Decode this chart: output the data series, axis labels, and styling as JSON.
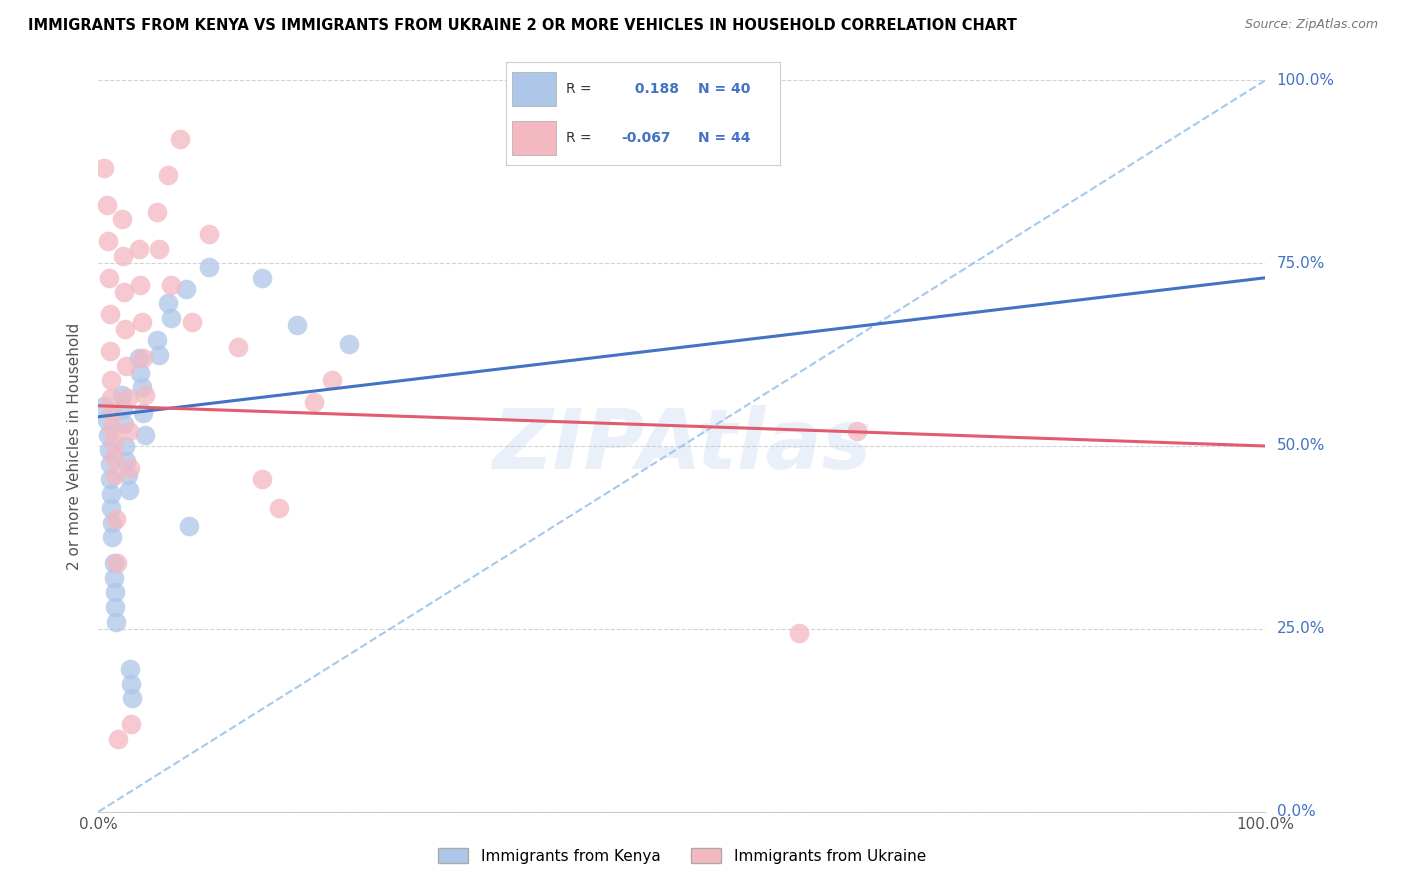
{
  "title": "IMMIGRANTS FROM KENYA VS IMMIGRANTS FROM UKRAINE 2 OR MORE VEHICLES IN HOUSEHOLD CORRELATION CHART",
  "source": "Source: ZipAtlas.com",
  "ylabel": "2 or more Vehicles in Household",
  "legend_kenya": "Immigrants from Kenya",
  "legend_ukraine": "Immigrants from Ukraine",
  "r_kenya": 0.188,
  "n_kenya": 40,
  "r_ukraine": -0.067,
  "n_ukraine": 44,
  "xlim": [
    0,
    1.0
  ],
  "ylim": [
    0,
    1.0
  ],
  "ytick_vals": [
    0.0,
    0.25,
    0.5,
    0.75,
    1.0
  ],
  "ytick_labels": [
    "0.0%",
    "25.0%",
    "50.0%",
    "75.0%",
    "100.0%"
  ],
  "grid_color": "#c8c8c8",
  "kenya_color": "#aec6e8",
  "ukraine_color": "#f4b8c1",
  "kenya_line_color": "#4472c4",
  "ukraine_line_color": "#e05c6e",
  "ref_line_color": "#7fb3e8",
  "kenya_scatter": [
    [
      0.005,
      0.555
    ],
    [
      0.007,
      0.535
    ],
    [
      0.008,
      0.515
    ],
    [
      0.009,
      0.495
    ],
    [
      0.01,
      0.475
    ],
    [
      0.01,
      0.455
    ],
    [
      0.011,
      0.435
    ],
    [
      0.011,
      0.415
    ],
    [
      0.012,
      0.395
    ],
    [
      0.012,
      0.375
    ],
    [
      0.013,
      0.34
    ],
    [
      0.013,
      0.32
    ],
    [
      0.014,
      0.3
    ],
    [
      0.014,
      0.28
    ],
    [
      0.015,
      0.26
    ],
    [
      0.02,
      0.57
    ],
    [
      0.021,
      0.55
    ],
    [
      0.022,
      0.53
    ],
    [
      0.023,
      0.5
    ],
    [
      0.024,
      0.48
    ],
    [
      0.025,
      0.46
    ],
    [
      0.026,
      0.44
    ],
    [
      0.027,
      0.195
    ],
    [
      0.028,
      0.175
    ],
    [
      0.029,
      0.155
    ],
    [
      0.035,
      0.62
    ],
    [
      0.036,
      0.6
    ],
    [
      0.037,
      0.58
    ],
    [
      0.038,
      0.545
    ],
    [
      0.04,
      0.515
    ],
    [
      0.05,
      0.645
    ],
    [
      0.052,
      0.625
    ],
    [
      0.06,
      0.695
    ],
    [
      0.062,
      0.675
    ],
    [
      0.075,
      0.715
    ],
    [
      0.078,
      0.39
    ],
    [
      0.095,
      0.745
    ],
    [
      0.14,
      0.73
    ],
    [
      0.17,
      0.665
    ],
    [
      0.215,
      0.64
    ]
  ],
  "ukraine_scatter": [
    [
      0.005,
      0.88
    ],
    [
      0.007,
      0.83
    ],
    [
      0.008,
      0.78
    ],
    [
      0.009,
      0.73
    ],
    [
      0.01,
      0.68
    ],
    [
      0.01,
      0.63
    ],
    [
      0.011,
      0.59
    ],
    [
      0.011,
      0.565
    ],
    [
      0.012,
      0.545
    ],
    [
      0.012,
      0.525
    ],
    [
      0.013,
      0.505
    ],
    [
      0.013,
      0.485
    ],
    [
      0.014,
      0.46
    ],
    [
      0.015,
      0.4
    ],
    [
      0.016,
      0.34
    ],
    [
      0.017,
      0.1
    ],
    [
      0.02,
      0.81
    ],
    [
      0.021,
      0.76
    ],
    [
      0.022,
      0.71
    ],
    [
      0.023,
      0.66
    ],
    [
      0.024,
      0.61
    ],
    [
      0.025,
      0.565
    ],
    [
      0.026,
      0.52
    ],
    [
      0.027,
      0.47
    ],
    [
      0.028,
      0.12
    ],
    [
      0.035,
      0.77
    ],
    [
      0.036,
      0.72
    ],
    [
      0.037,
      0.67
    ],
    [
      0.038,
      0.62
    ],
    [
      0.04,
      0.57
    ],
    [
      0.05,
      0.82
    ],
    [
      0.052,
      0.77
    ],
    [
      0.06,
      0.87
    ],
    [
      0.062,
      0.72
    ],
    [
      0.07,
      0.92
    ],
    [
      0.08,
      0.67
    ],
    [
      0.095,
      0.79
    ],
    [
      0.12,
      0.635
    ],
    [
      0.14,
      0.455
    ],
    [
      0.155,
      0.415
    ],
    [
      0.185,
      0.56
    ],
    [
      0.2,
      0.59
    ],
    [
      0.6,
      0.245
    ],
    [
      0.65,
      0.52
    ]
  ],
  "kenya_trend": [
    0.0,
    1.0,
    0.54,
    0.73
  ],
  "ukraine_trend": [
    0.0,
    1.0,
    0.555,
    0.5
  ]
}
